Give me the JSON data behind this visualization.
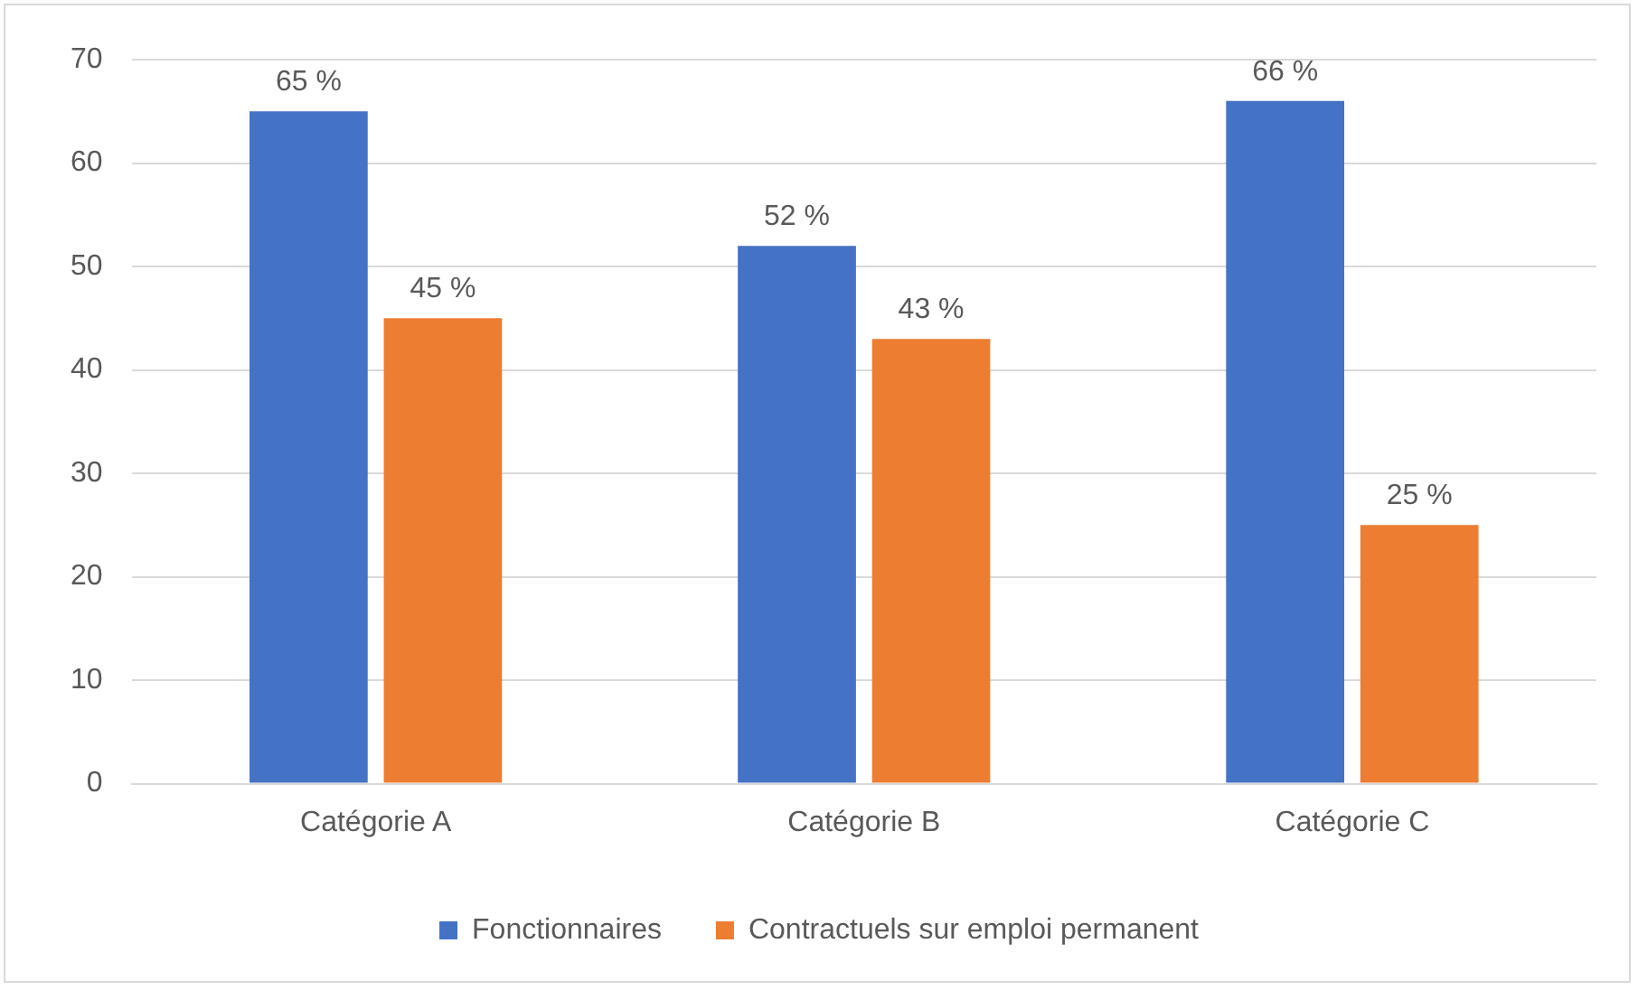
{
  "chart_data": {
    "type": "bar",
    "categories": [
      "Catégorie A",
      "Catégorie B",
      "Catégorie C"
    ],
    "series": [
      {
        "name": "Fonctionnaires",
        "color": "#4472c4",
        "values": [
          65,
          52,
          66
        ],
        "value_labels": [
          "65 %",
          "52 %",
          "66 %"
        ]
      },
      {
        "name": "Contractuels sur emploi permanent",
        "color": "#ed7d31",
        "values": [
          45,
          43,
          25
        ],
        "value_labels": [
          "45 %",
          "43 %",
          "25 %"
        ]
      }
    ],
    "ylim": [
      0,
      70
    ],
    "yticks": [
      0,
      10,
      20,
      30,
      40,
      50,
      60,
      70
    ],
    "grid": "y",
    "legend": "bottom"
  }
}
